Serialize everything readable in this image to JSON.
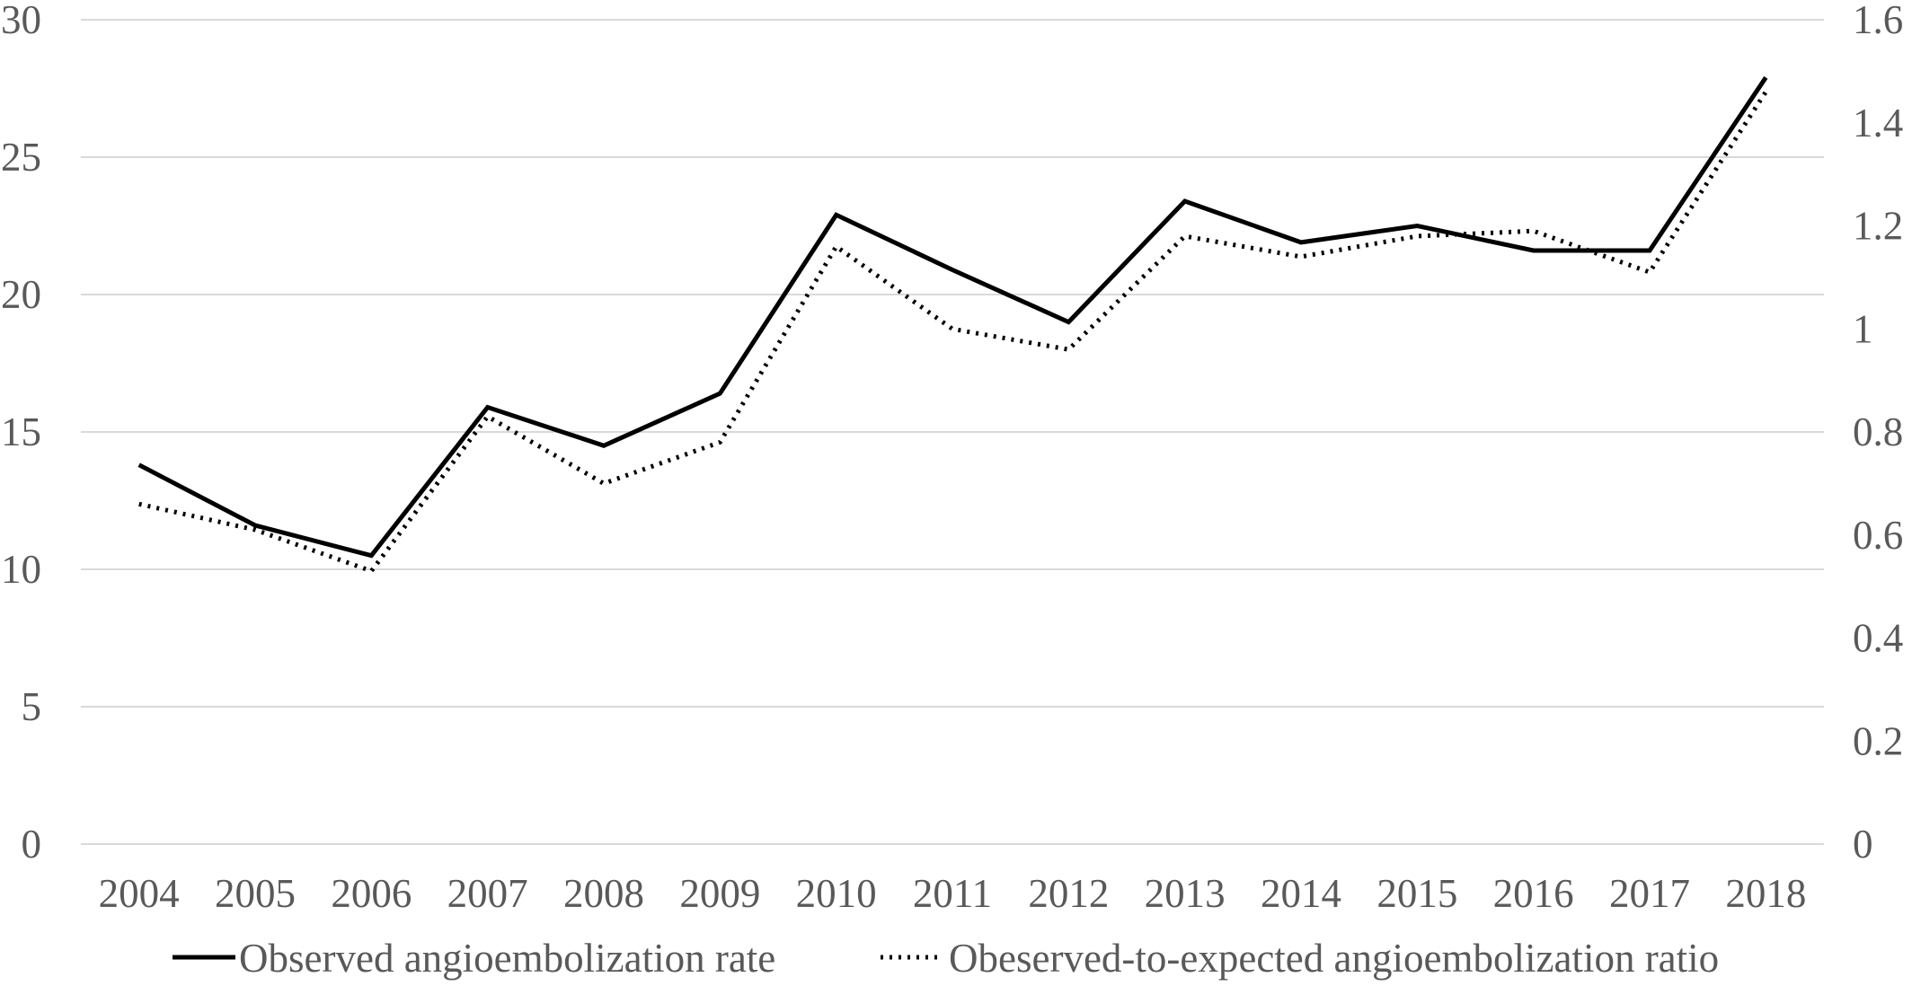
{
  "chart_data": {
    "type": "line",
    "categories": [
      "2004",
      "2005",
      "2006",
      "2007",
      "2008",
      "2009",
      "2010",
      "2011",
      "2012",
      "2013",
      "2014",
      "2015",
      "2016",
      "2017",
      "2018"
    ],
    "series": [
      {
        "name": "Observed angioembolization rate",
        "axis": "left",
        "style": "solid",
        "color": "#000000",
        "values": [
          13.8,
          11.6,
          10.5,
          15.9,
          14.5,
          16.4,
          22.9,
          20.9,
          19.0,
          23.4,
          21.9,
          22.5,
          21.6,
          21.6,
          27.9
        ]
      },
      {
        "name": "Obeserved-to-expected angioembolization ratio",
        "axis": "right",
        "style": "dotted",
        "color": "#000000",
        "values": [
          0.66,
          0.61,
          0.53,
          0.83,
          0.7,
          0.78,
          1.16,
          1.0,
          0.96,
          1.18,
          1.14,
          1.18,
          1.19,
          1.11,
          1.46
        ]
      }
    ],
    "y_left": {
      "ylim": [
        0,
        30
      ],
      "ticks": [
        "0",
        "5",
        "10",
        "15",
        "20",
        "25",
        "30"
      ]
    },
    "y_right": {
      "ylim": [
        0,
        1.6
      ],
      "ticks": [
        "0",
        "0.2",
        "0.4",
        "0.6",
        "0.8",
        "1",
        "1.2",
        "1.4",
        "1.6"
      ]
    },
    "grid": true,
    "legend": "bottom",
    "title": "",
    "xlabel": "",
    "ylabel": ""
  }
}
